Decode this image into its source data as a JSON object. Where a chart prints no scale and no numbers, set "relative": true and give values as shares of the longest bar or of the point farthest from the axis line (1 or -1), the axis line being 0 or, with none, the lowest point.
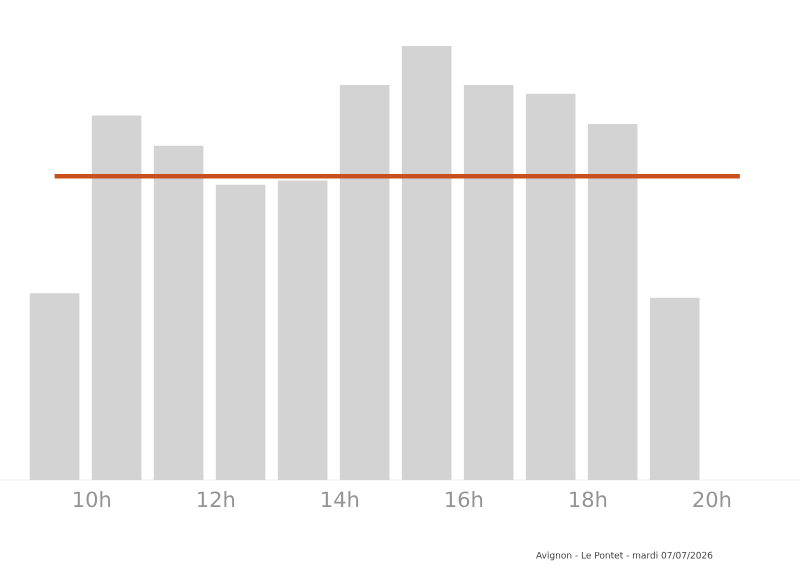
{
  "chart_data": {
    "type": "bar",
    "relative": true,
    "x": [
      9.4,
      10.4,
      11.4,
      12.4,
      13.4,
      14.4,
      15.4,
      16.4,
      17.4,
      18.4,
      19.4
    ],
    "values": [
      0.43,
      0.84,
      0.77,
      0.68,
      0.69,
      0.91,
      1,
      0.91,
      0.89,
      0.82,
      0.42
    ],
    "color": "#d4d3d3",
    "xlim": [
      8.52,
      21.42
    ],
    "xticks": [
      {
        "value": 10,
        "label": "10h"
      },
      {
        "value": 12,
        "label": "12h"
      },
      {
        "value": 14,
        "label": "14h"
      },
      {
        "value": 16,
        "label": "16h"
      },
      {
        "value": 18,
        "label": "18h"
      },
      {
        "value": 20,
        "label": "20h"
      }
    ],
    "ref_lines": [
      {
        "axis": "y",
        "value": 0.7,
        "color": "#c9501c"
      }
    ],
    "annotations": [
      "Avignon - Le Pontet - mardi 07/07/2026"
    ]
  }
}
